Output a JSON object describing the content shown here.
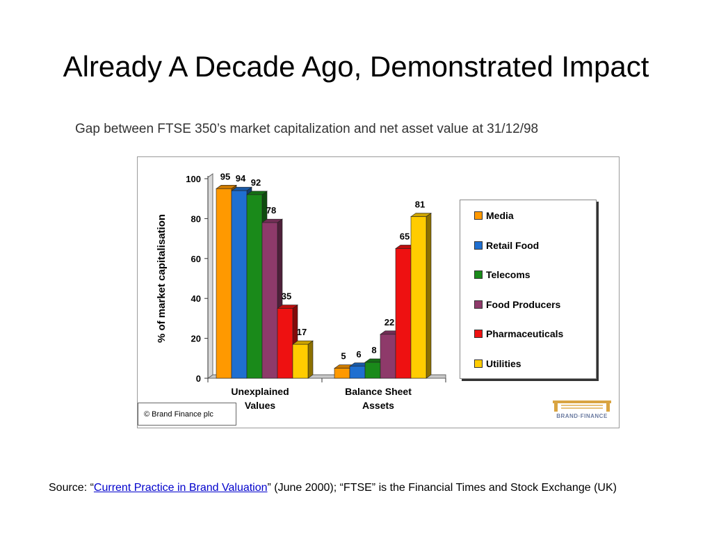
{
  "slide": {
    "title": "Already A Decade Ago, Demonstrated Impact"
  },
  "chart_caption": "Gap between FTSE 350’s market capitalization and net asset value at 31/12/98",
  "chart_data": {
    "type": "bar",
    "ylabel": "% of market capitalisation",
    "ylim": [
      0,
      100
    ],
    "yticks": [
      0,
      20,
      40,
      60,
      80,
      100
    ],
    "categories": [
      "Unexplained Values",
      "Balance Sheet Assets"
    ],
    "category_lines": [
      [
        "Unexplained",
        "Values"
      ],
      [
        "Balance Sheet",
        "Assets"
      ]
    ],
    "series": [
      {
        "name": "Media",
        "values": [
          95,
          5
        ],
        "color": "#ff9900"
      },
      {
        "name": "Retail Food",
        "values": [
          94,
          6
        ],
        "color": "#1f6fd0"
      },
      {
        "name": "Telecoms",
        "values": [
          92,
          8
        ],
        "color": "#1a8a1a"
      },
      {
        "name": "Food Producers",
        "values": [
          78,
          22
        ],
        "color": "#8e3a6a"
      },
      {
        "name": "Pharmaceuticals",
        "values": [
          35,
          65
        ],
        "color": "#ee1111"
      },
      {
        "name": "Utilities",
        "values": [
          17,
          81
        ],
        "color": "#ffcc00"
      }
    ],
    "legend_position": "right",
    "grid": false,
    "bar_style": "3d"
  },
  "copyright": "© Brand Finance plc",
  "logo_text": "BRAND·FINANCE",
  "source": {
    "prefix": "Source: “",
    "link_text": "Current Practice in Brand Valuation",
    "suffix": "” (June 2000); “FTSE” is the Financial Times and Stock Exchange (UK)"
  }
}
